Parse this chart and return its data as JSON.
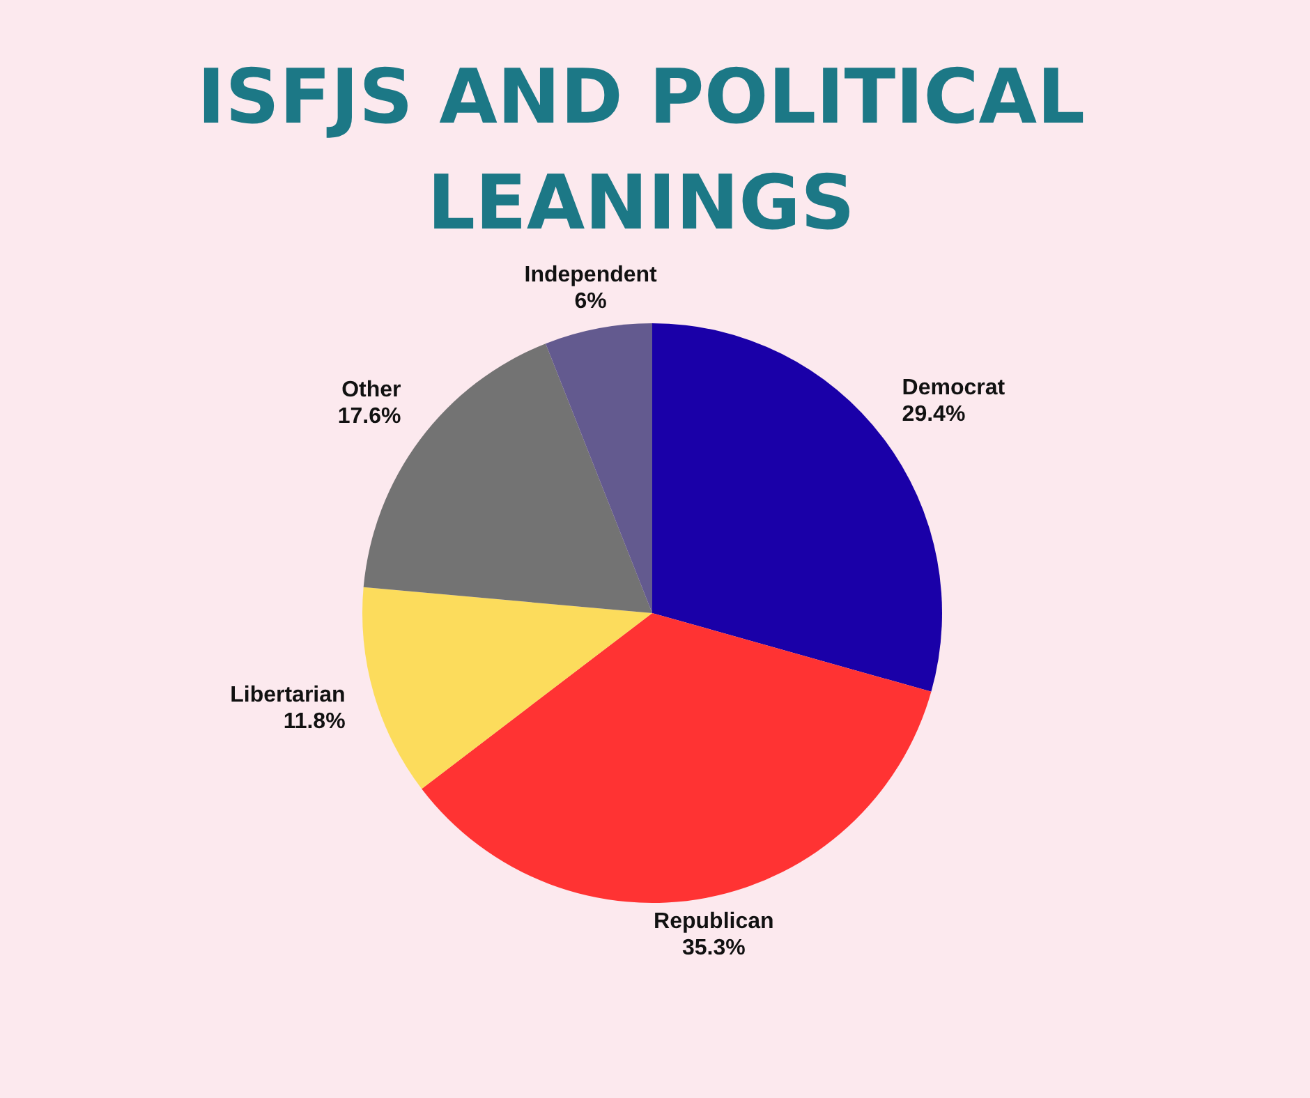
{
  "chart_data": {
    "type": "pie",
    "title": "ISFJS AND POLITICAL LEANINGS",
    "categories": [
      "Democrat",
      "Republican",
      "Libertarian",
      "Other",
      "Independent"
    ],
    "values": [
      29.4,
      35.3,
      11.8,
      17.6,
      6
    ],
    "colors": [
      "#1a00a8",
      "#ff3333",
      "#fcdc5c",
      "#737373",
      "#635a8f"
    ],
    "value_labels": [
      "29.4%",
      "35.3%",
      "11.8%",
      "17.6%",
      "6%"
    ]
  }
}
